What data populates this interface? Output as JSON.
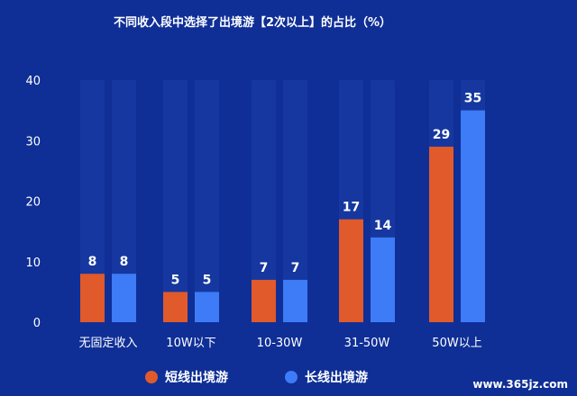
{
  "chart_data": {
    "type": "bar",
    "title": "不同收入段中选择了出境游【2次以上】的占比（%）",
    "categories": [
      "无固定收入",
      "10W以下",
      "10-30W",
      "31-50W",
      "50W以上"
    ],
    "series": [
      {
        "name": "短线出境游",
        "values": [
          8,
          5,
          7,
          17,
          29
        ],
        "color": "#e05a2b"
      },
      {
        "name": "长线出境游",
        "values": [
          8,
          5,
          7,
          14,
          35
        ],
        "color": "#3d7bf7"
      }
    ],
    "ylim": [
      0,
      40
    ],
    "yticks": [
      0,
      10,
      20,
      30,
      40
    ],
    "background_track_color": "#15379f",
    "legend_position": "bottom"
  },
  "watermark": "www.365jz.com"
}
